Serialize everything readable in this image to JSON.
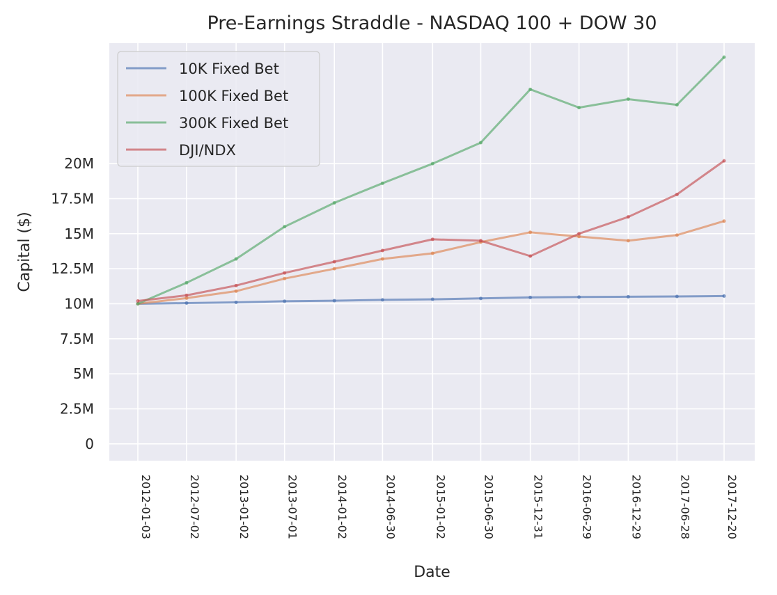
{
  "chart_data": {
    "type": "line",
    "title": "Pre-Earnings Straddle - NASDAQ 100 + DOW 30",
    "xlabel": "Date",
    "ylabel": "Capital ($)",
    "x_tick_labels": [
      "2012-01-03",
      "2012-07-02",
      "2013-01-02",
      "2013-07-01",
      "2014-01-02",
      "2014-06-30",
      "2015-01-02",
      "2015-06-30",
      "2015-12-31",
      "2016-06-29",
      "2016-12-29",
      "2017-06-28",
      "2017-12-20"
    ],
    "x": [
      "2012-01-03",
      "2012-07-02",
      "2013-01-02",
      "2013-07-01",
      "2014-01-02",
      "2014-06-30",
      "2015-01-02",
      "2015-06-30",
      "2015-12-31",
      "2016-06-29",
      "2016-12-29",
      "2017-06-28",
      "2017-12-20"
    ],
    "y_ticks": [
      0,
      2.5,
      5,
      7.5,
      10,
      12.5,
      15,
      17.5,
      20
    ],
    "y_tick_labels": [
      "0",
      "2.5M",
      "5M",
      "7.5M",
      "10M",
      "12.5M",
      "15M",
      "17.5M",
      "20M"
    ],
    "ylim": [
      -1.2,
      28.6
    ],
    "y_unit": "M",
    "grid": true,
    "legend_position": "top-left",
    "series": [
      {
        "name": "10K Fixed Bet",
        "color": "#4c72b0",
        "values": [
          10.0,
          10.05,
          10.1,
          10.18,
          10.22,
          10.28,
          10.32,
          10.38,
          10.45,
          10.48,
          10.5,
          10.52,
          10.55
        ]
      },
      {
        "name": "100K Fixed Bet",
        "color": "#dd8452",
        "values": [
          10.0,
          10.4,
          10.9,
          11.8,
          12.5,
          13.2,
          13.6,
          14.4,
          15.1,
          14.8,
          14.5,
          14.9,
          15.9
        ]
      },
      {
        "name": "300K Fixed Bet",
        "color": "#55a868",
        "values": [
          10.0,
          11.5,
          13.2,
          15.5,
          17.2,
          18.6,
          20.0,
          21.5,
          25.3,
          24.0,
          24.6,
          24.2,
          27.6
        ]
      },
      {
        "name": "DJI/NDX",
        "color": "#c44e52",
        "values": [
          10.2,
          10.6,
          11.3,
          12.2,
          13.0,
          13.8,
          14.6,
          14.5,
          13.4,
          15.0,
          16.2,
          17.8,
          20.2
        ]
      }
    ]
  }
}
